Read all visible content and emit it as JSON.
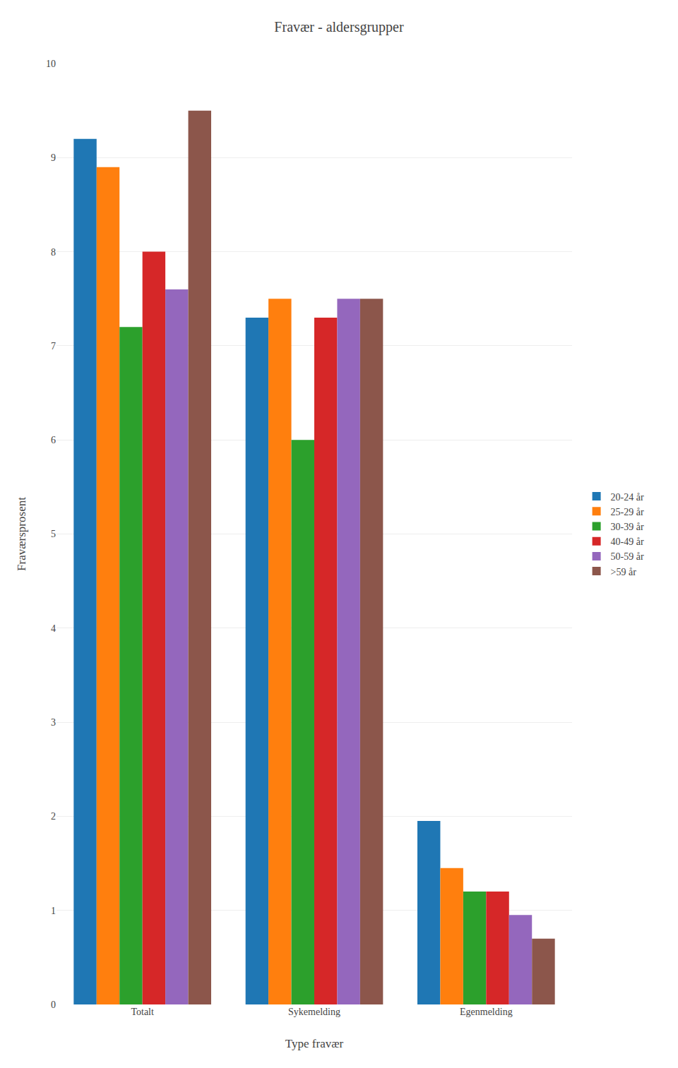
{
  "chart_data": {
    "type": "bar",
    "title": "Fravær - aldersgrupper",
    "xlabel": "Type fravær",
    "ylabel": "Fraværsprosent",
    "categories": [
      "Totalt",
      "Sykemelding",
      "Egenmelding"
    ],
    "series": [
      {
        "name": "20-24 år",
        "values": [
          9.2,
          7.3,
          1.95
        ]
      },
      {
        "name": "25-29 år",
        "values": [
          8.9,
          7.5,
          1.45
        ]
      },
      {
        "name": "30-39 år",
        "values": [
          7.2,
          6.0,
          1.2
        ]
      },
      {
        "name": "40-49 år",
        "values": [
          8.0,
          7.3,
          1.2
        ]
      },
      {
        "name": "50-59 år",
        "values": [
          7.6,
          7.5,
          0.95
        ]
      },
      {
        "name": ">59 år",
        "values": [
          9.5,
          7.5,
          0.7
        ]
      }
    ],
    "ylim": [
      0,
      10
    ],
    "yticks": [
      0,
      1,
      2,
      3,
      4,
      5,
      6,
      7,
      8,
      9,
      10
    ],
    "grid": true,
    "legend": "right"
  }
}
